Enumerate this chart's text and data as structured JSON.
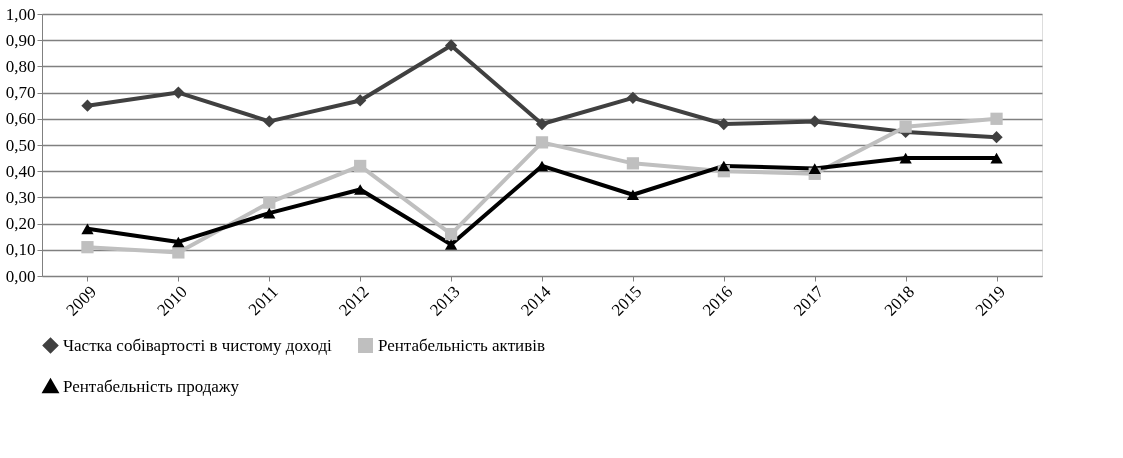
{
  "chart_data": {
    "type": "line",
    "categories": [
      "2009",
      "2010",
      "2011",
      "2012",
      "2013",
      "2014",
      "2015",
      "2016",
      "2017",
      "2018",
      "2019"
    ],
    "series": [
      {
        "name": "Частка собівартості в чистому доході",
        "color": "#404040",
        "marker": "diamond",
        "values": [
          0.65,
          0.7,
          0.59,
          0.67,
          0.88,
          0.58,
          0.68,
          0.58,
          0.59,
          0.55,
          0.53
        ]
      },
      {
        "name": "Рентабельність активів",
        "color": "#bfbfbf",
        "marker": "square",
        "values": [
          0.11,
          0.09,
          0.28,
          0.42,
          0.16,
          0.51,
          0.43,
          0.4,
          0.39,
          0.57,
          0.6
        ]
      },
      {
        "name": "Рентабельність продажу",
        "color": "#000000",
        "marker": "triangle",
        "values": [
          0.18,
          0.13,
          0.24,
          0.33,
          0.12,
          0.42,
          0.31,
          0.42,
          0.41,
          0.45,
          0.45
        ]
      }
    ],
    "ylim": [
      0,
      1.0
    ],
    "yticks": [
      {
        "value": 0,
        "label": "0,00"
      },
      {
        "value": 0.1,
        "label": "0,10"
      },
      {
        "value": 0.2,
        "label": "0,20"
      },
      {
        "value": 0.3,
        "label": "0,30"
      },
      {
        "value": 0.4,
        "label": "0,40"
      },
      {
        "value": 0.5,
        "label": "0,50"
      },
      {
        "value": 0.6,
        "label": "0,60"
      },
      {
        "value": 0.7,
        "label": "0,70"
      },
      {
        "value": 0.8,
        "label": "0,80"
      },
      {
        "value": 0.9,
        "label": "0,90"
      },
      {
        "value": 1.0,
        "label": "1,00"
      }
    ],
    "grid": "y",
    "legend": "bottom",
    "line_style": "solid"
  }
}
